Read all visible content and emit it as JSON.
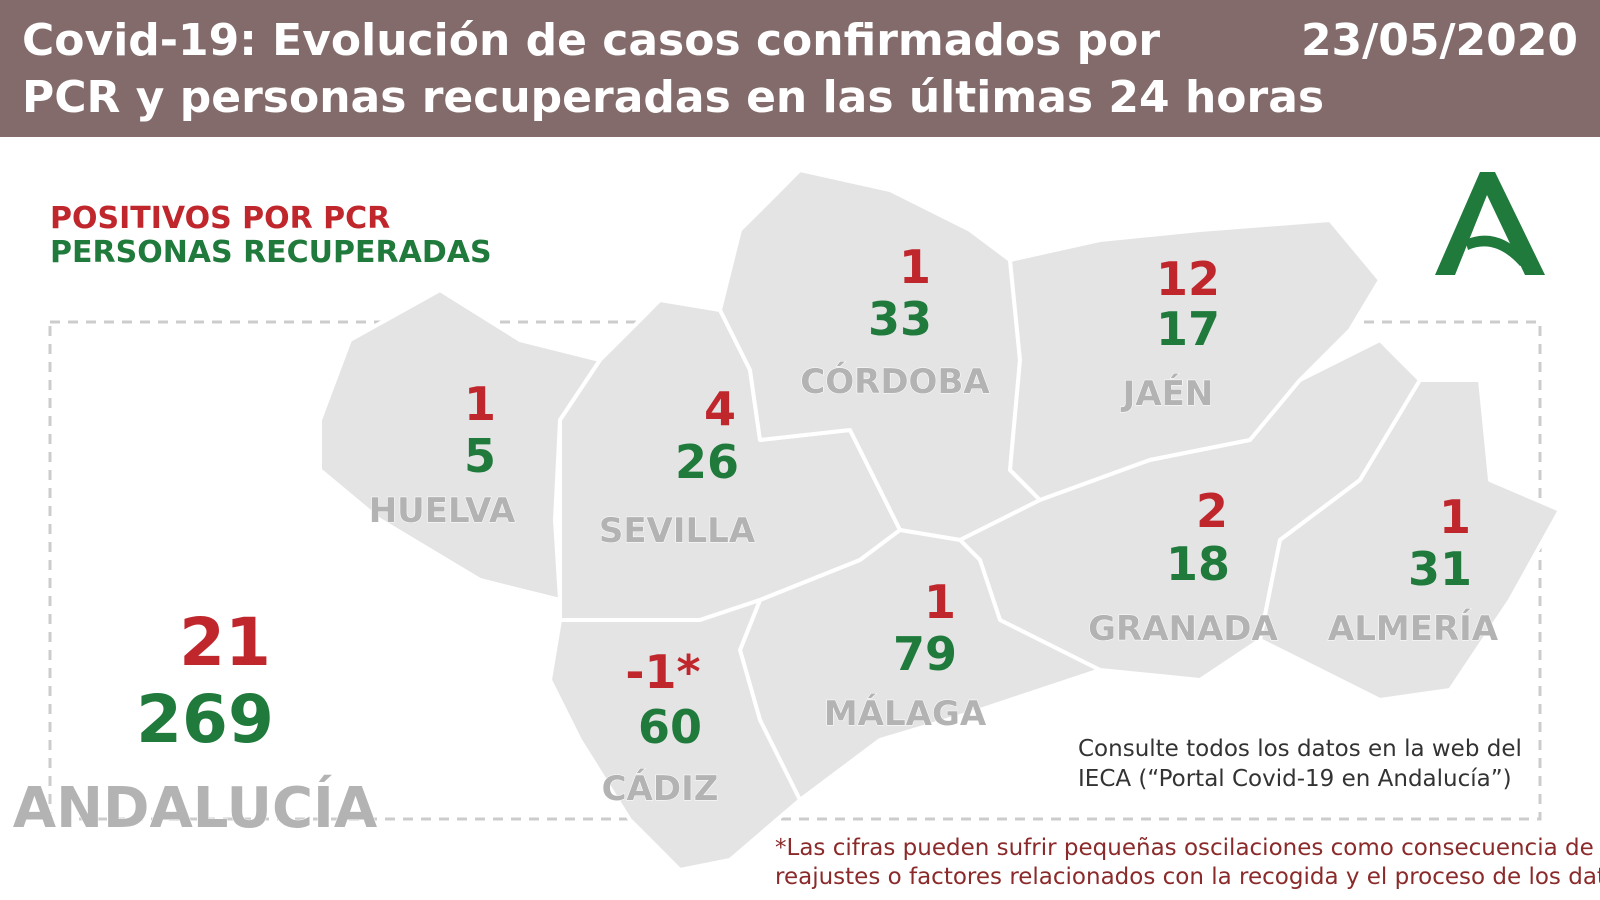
{
  "header": {
    "title": [
      "Covid-19: Evolución de casos confirmados por",
      "PCR y personas recuperadas en las últimas 24 horas"
    ],
    "date": "23/05/2020"
  },
  "legend": {
    "positives": "POSITIVOS POR PCR",
    "recovered": "PERSONAS RECUPERADAS"
  },
  "provinces": [
    {
      "name": "HUELVA",
      "positives": 1,
      "recovered": 5
    },
    {
      "name": "SEVILLA",
      "positives": 4,
      "recovered": 26
    },
    {
      "name": "CÓRDOBA",
      "positives": 1,
      "recovered": 33
    },
    {
      "name": "JAÉN",
      "positives": 12,
      "recovered": 17
    },
    {
      "name": "GRANADA",
      "positives": 2,
      "recovered": 18
    },
    {
      "name": "ALMERÍA",
      "positives": 1,
      "recovered": 31
    },
    {
      "name": "MÁLAGA",
      "positives": 1,
      "recovered": 79
    },
    {
      "name": "CÁDIZ",
      "positives": "-1*",
      "recovered": 60
    }
  ],
  "total": {
    "name": "ANDALUCÍA",
    "positives": 21,
    "recovered": 269
  },
  "note": [
    "Consulte todos los datos en la web del",
    "IECA (“Portal Covid-19 en Andalucía”)"
  ],
  "footnote": [
    "*Las cifras pueden sufrir pequeñas oscilaciones como consecuencia de",
    "reajustes o factores relacionados con la recogida y el proceso de los datos"
  ]
}
